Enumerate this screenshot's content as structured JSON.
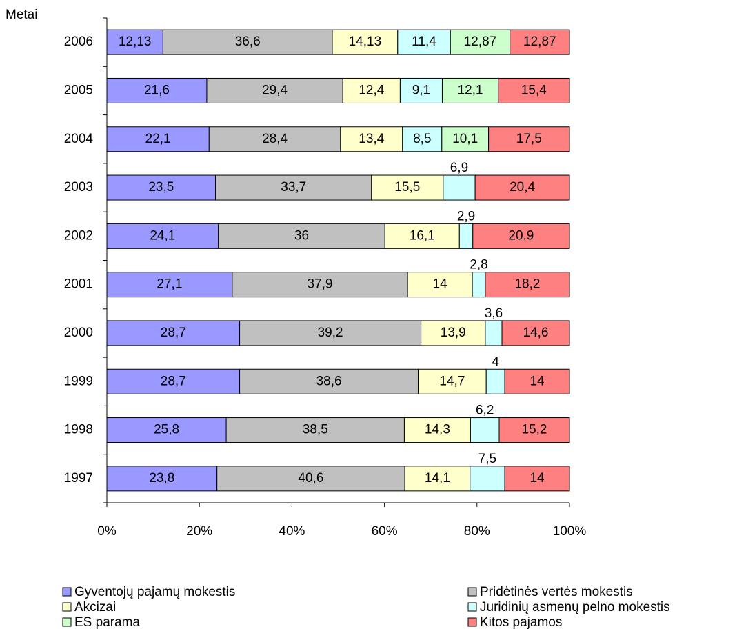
{
  "chart_data": {
    "type": "stacked_bar_horizontal",
    "y_axis_label": "Metai",
    "categories": [
      "2006",
      "2005",
      "2004",
      "2003",
      "2002",
      "2001",
      "2000",
      "1999",
      "1998",
      "1997"
    ],
    "series": [
      {
        "name": "Gyventojų pajamų mokestis",
        "color": "#9999ff",
        "values": [
          12.13,
          21.6,
          22.1,
          23.5,
          24.1,
          27.1,
          28.7,
          28.7,
          25.8,
          23.8
        ],
        "value_labels": [
          "12,13",
          "21,6",
          "22,1",
          "23,5",
          "24,1",
          "27,1",
          "28,7",
          "28,7",
          "25,8",
          "23,8"
        ]
      },
      {
        "name": "Pridėtinės vertės mokestis",
        "color": "#c0c0c0",
        "values": [
          36.6,
          29.4,
          28.4,
          33.7,
          36,
          37.9,
          39.2,
          38.6,
          38.5,
          40.6
        ],
        "value_labels": [
          "36,6",
          "29,4",
          "28,4",
          "33,7",
          "36",
          "37,9",
          "39,2",
          "38,6",
          "38,5",
          "40,6"
        ]
      },
      {
        "name": "Akcizai",
        "color": "#ffffcc",
        "values": [
          14.13,
          12.4,
          13.4,
          15.5,
          16.1,
          14,
          13.9,
          14.7,
          14.3,
          14.1
        ],
        "value_labels": [
          "14,13",
          "12,4",
          "13,4",
          "15,5",
          "16,1",
          "14",
          "13,9",
          "14,7",
          "14,3",
          "14,1"
        ]
      },
      {
        "name": "Juridinių asmenų pelno mokestis",
        "color": "#ccffff",
        "values": [
          11.4,
          9.1,
          8.5,
          6.9,
          2.9,
          2.8,
          3.6,
          4,
          6.2,
          7.5
        ],
        "value_labels": [
          "11,4",
          "9,1",
          "8,5",
          "6,9",
          "2,9",
          "2,8",
          "3,6",
          "4",
          "6,2",
          "7,5"
        ]
      },
      {
        "name": "ES parama",
        "color": "#ccffcc",
        "values": [
          12.87,
          12.1,
          10.1,
          null,
          null,
          null,
          null,
          null,
          null,
          null
        ],
        "value_labels": [
          "12,87",
          "12,1",
          "10,1",
          null,
          null,
          null,
          null,
          null,
          null,
          null
        ]
      },
      {
        "name": "Kitos pajamos",
        "color": "#ff8080",
        "values": [
          12.87,
          15.4,
          17.5,
          20.4,
          20.9,
          18.2,
          14.6,
          14,
          15.2,
          14
        ],
        "value_labels": [
          "12,87",
          "15,4",
          "17,5",
          "20,4",
          "20,9",
          "18,2",
          "14,6",
          "14",
          "15,2",
          "14"
        ]
      }
    ],
    "xlim": [
      0,
      100
    ],
    "xticks": [
      {
        "value": 0,
        "label": "0%"
      },
      {
        "value": 20,
        "label": "20%"
      },
      {
        "value": 40,
        "label": "40%"
      },
      {
        "value": 60,
        "label": "60%"
      },
      {
        "value": 80,
        "label": "80%"
      },
      {
        "value": 100,
        "label": "100%"
      }
    ],
    "legend": "bottom"
  }
}
